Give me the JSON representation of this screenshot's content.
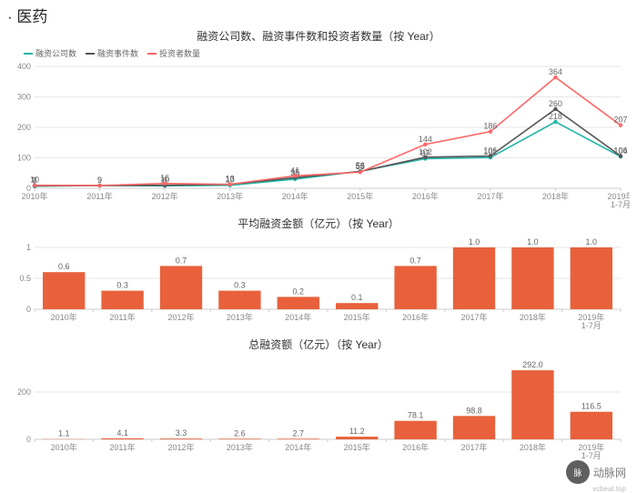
{
  "page_title": "· 医药",
  "categories": [
    "2010年",
    "2011年",
    "2012年",
    "2013年",
    "2014年",
    "2015年",
    "2016年",
    "2017年",
    "2018年",
    "2019年\n1-7月"
  ],
  "line_chart": {
    "title": "融资公司数、融资事件数和投资者数量（按 Year）",
    "ylim": [
      0,
      400
    ],
    "ytick_step": 100,
    "grid_color": "#e6e6e6",
    "series": [
      {
        "name": "融资公司数",
        "color": "#1fb5a8",
        "values": [
          7,
          9,
          8,
          10,
          30,
          56,
          97,
          101,
          218,
          104
        ]
      },
      {
        "name": "融资事件数",
        "color": "#555555",
        "values": [
          8,
          9,
          10,
          13,
          35,
          55,
          102,
          106,
          260,
          106
        ]
      },
      {
        "name": "投资者数量",
        "color": "#ff6666",
        "values": [
          10,
          9,
          16,
          13,
          41,
          53,
          144,
          186,
          364,
          207
        ]
      }
    ]
  },
  "bar_chart_avg": {
    "title": "平均融资金额（亿元）（按 Year）",
    "ylim": [
      0,
      1.0
    ],
    "ytick_step": 0.5,
    "bar_color": "#e8613c",
    "values": [
      0.6,
      0.3,
      0.7,
      0.3,
      0.2,
      0.1,
      0.7,
      1.0,
      1.0,
      1.0
    ],
    "labels": [
      "0.6",
      "0.3",
      "0.7",
      "0.3",
      "0.2",
      "0.1",
      "0.7",
      "1.0",
      "1.0",
      "1.0"
    ]
  },
  "bar_chart_total": {
    "title": "总融资额（亿元）（按 Year）",
    "ylim": [
      0,
      300
    ],
    "ytick_step": 200,
    "bar_color": "#e8613c",
    "values": [
      1.1,
      4.1,
      3.3,
      2.6,
      2.7,
      11.2,
      78.1,
      98.8,
      292.0,
      116.5
    ],
    "labels": [
      "1.1",
      "4.1",
      "3.3",
      "2.6",
      "2.7",
      "11.2",
      "78.1",
      "98.8",
      "292.0",
      "116.5"
    ]
  },
  "watermark": {
    "name": "动脉网",
    "sub": "vcbeat.top"
  },
  "axis_label_fontsize": 9,
  "value_label_fontsize": 9
}
